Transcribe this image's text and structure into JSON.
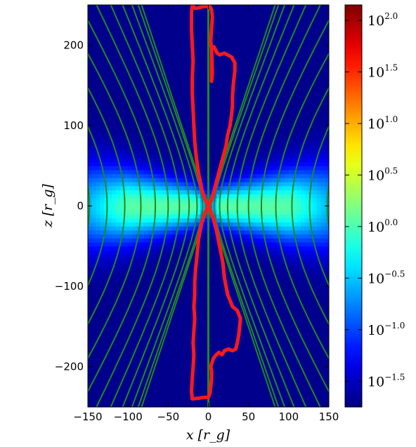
{
  "chart_data": {
    "type": "heatmap",
    "title": "",
    "xlabel": "x [r_g]",
    "ylabel": "z [r_g]",
    "xlim": [
      -150,
      150
    ],
    "ylim": [
      -250,
      250
    ],
    "xticks": [
      "−150",
      "−100",
      "−50",
      "0",
      "50",
      "100",
      "150"
    ],
    "xtick_values": [
      -150,
      -100,
      -50,
      0,
      50,
      100,
      150
    ],
    "yticks": [
      "200",
      "100",
      "0",
      "−100",
      "−200"
    ],
    "ytick_values": [
      200,
      100,
      0,
      -100,
      -200
    ],
    "colormap": "jet",
    "colorbar": {
      "scale": "log",
      "range": [
        -1.75,
        2.15
      ],
      "tick_base": "10",
      "tick_exponents": [
        "2.0",
        "1.5",
        "1.0",
        "0.5",
        "0.0",
        "−0.5",
        "−1.0",
        "−1.5"
      ],
      "tick_values": [
        2.0,
        1.5,
        1.0,
        0.5,
        0.0,
        -0.5,
        -1.0,
        -1.5
      ]
    },
    "field": {
      "description_peak_log10": 0.05,
      "background_log10": -1.7
    },
    "field_lines": {
      "color": "#1f8a1f",
      "offsets_at_equator": [
        3,
        7,
        14,
        24,
        36,
        50,
        66,
        84,
        104,
        126,
        148
      ]
    },
    "boundary_curve": {
      "color": "#ff1a1a",
      "points": [
        [
          -20,
          250
        ],
        [
          -17,
          246
        ],
        [
          -14,
          246
        ],
        [
          -6,
          248
        ],
        [
          2,
          248
        ],
        [
          4,
          244
        ],
        [
          5,
          235
        ],
        [
          4,
          220
        ],
        [
          3,
          205
        ],
        [
          4,
          195
        ],
        [
          5,
          165
        ],
        [
          4,
          155
        ],
        [
          4,
          195
        ],
        [
          7,
          198
        ],
        [
          11,
          190
        ],
        [
          14,
          188
        ],
        [
          20,
          190
        ],
        [
          24,
          188
        ],
        [
          29,
          185
        ],
        [
          33,
          178
        ],
        [
          33,
          168
        ],
        [
          32,
          160
        ],
        [
          31,
          150
        ],
        [
          30,
          135
        ],
        [
          30,
          125
        ],
        [
          29,
          115
        ],
        [
          27,
          100
        ],
        [
          24,
          88
        ],
        [
          22,
          75
        ],
        [
          18,
          60
        ],
        [
          14,
          45
        ],
        [
          10,
          30
        ],
        [
          6,
          15
        ],
        [
          3,
          5
        ],
        [
          0,
          0
        ],
        [
          2,
          -5
        ],
        [
          6,
          -15
        ],
        [
          10,
          -30
        ],
        [
          14,
          -50
        ],
        [
          18,
          -70
        ],
        [
          20,
          -90
        ],
        [
          24,
          -110
        ],
        [
          30,
          -125
        ],
        [
          36,
          -130
        ],
        [
          40,
          -140
        ],
        [
          38,
          -160
        ],
        [
          36,
          -170
        ],
        [
          34,
          -178
        ],
        [
          30,
          -180
        ],
        [
          25,
          -178
        ],
        [
          20,
          -180
        ],
        [
          17,
          -185
        ],
        [
          13,
          -182
        ],
        [
          9,
          -186
        ],
        [
          6,
          -190
        ],
        [
          3,
          -200
        ],
        [
          4,
          -205
        ],
        [
          4,
          -215
        ],
        [
          3,
          -225
        ],
        [
          2,
          -233
        ],
        [
          0,
          -238
        ],
        [
          -5,
          -238
        ],
        [
          -12,
          -239
        ],
        [
          -20,
          -240
        ],
        [
          -21,
          -230
        ],
        [
          -20,
          -215
        ],
        [
          -19,
          -200
        ],
        [
          -18,
          -185
        ],
        [
          -19,
          -170
        ],
        [
          -18,
          -155
        ],
        [
          -17,
          -140
        ],
        [
          -18,
          -125
        ],
        [
          -17,
          -110
        ],
        [
          -17,
          -95
        ],
        [
          -16,
          -80
        ],
        [
          -14,
          -60
        ],
        [
          -12,
          -40
        ],
        [
          -8,
          -20
        ],
        [
          -4,
          -8
        ],
        [
          0,
          0
        ],
        [
          -4,
          8
        ],
        [
          -8,
          20
        ],
        [
          -12,
          40
        ],
        [
          -15,
          60
        ],
        [
          -17,
          80
        ],
        [
          -18,
          100
        ],
        [
          -19,
          120
        ],
        [
          -20,
          140
        ],
        [
          -20,
          160
        ],
        [
          -19,
          180
        ],
        [
          -20,
          200
        ],
        [
          -21,
          220
        ],
        [
          -21,
          240
        ],
        [
          -20,
          250
        ]
      ]
    }
  }
}
